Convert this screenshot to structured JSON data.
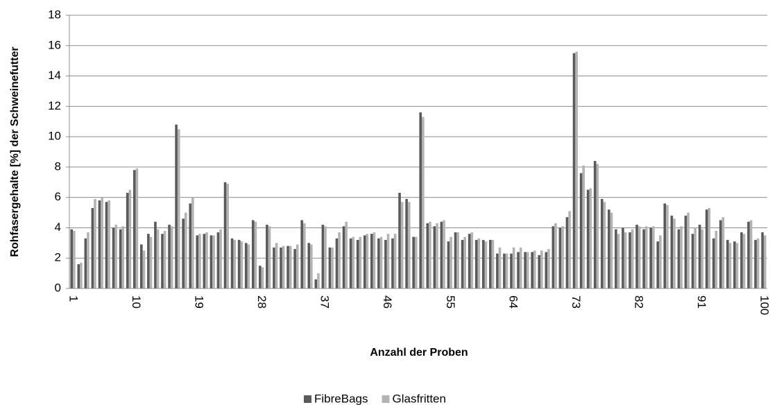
{
  "chart_data": {
    "type": "bar",
    "xlabel": "Anzahl der Proben",
    "ylabel": "Rohfasergehalte [%] der Schweinefutter",
    "categories": [
      1,
      null,
      null,
      null,
      null,
      null,
      null,
      null,
      null,
      10,
      null,
      null,
      null,
      null,
      null,
      null,
      null,
      null,
      19,
      null,
      null,
      null,
      null,
      null,
      null,
      null,
      null,
      28,
      null,
      null,
      null,
      null,
      null,
      null,
      null,
      null,
      37,
      null,
      null,
      null,
      null,
      null,
      null,
      null,
      null,
      46,
      null,
      null,
      null,
      null,
      null,
      null,
      null,
      null,
      55,
      null,
      null,
      null,
      null,
      null,
      null,
      null,
      null,
      64,
      null,
      null,
      null,
      null,
      null,
      null,
      null,
      null,
      73,
      null,
      null,
      null,
      null,
      null,
      null,
      null,
      null,
      82,
      null,
      null,
      null,
      null,
      null,
      null,
      null,
      null,
      91,
      null,
      null,
      null,
      null,
      null,
      null,
      null,
      null,
      100
    ],
    "series": [
      {
        "name": "FibreBags",
        "color": "#5a5a5a",
        "values": [
          3.9,
          1.6,
          3.3,
          5.3,
          5.8,
          5.7,
          4.0,
          3.9,
          6.3,
          7.8,
          2.9,
          3.6,
          4.4,
          3.6,
          4.2,
          10.8,
          4.6,
          5.6,
          3.5,
          3.6,
          3.5,
          3.7,
          7.0,
          3.3,
          3.2,
          3.0,
          4.5,
          1.5,
          4.2,
          2.7,
          2.7,
          2.8,
          2.6,
          4.5,
          3.0,
          0.6,
          4.2,
          2.7,
          3.3,
          4.1,
          3.3,
          3.2,
          3.5,
          3.6,
          3.3,
          3.2,
          3.3,
          6.3,
          5.9,
          3.4,
          11.6,
          4.3,
          4.1,
          4.4,
          3.1,
          3.7,
          3.2,
          3.6,
          3.2,
          3.2,
          3.2,
          2.3,
          2.3,
          2.3,
          2.4,
          2.4,
          2.4,
          2.2,
          2.4,
          4.1,
          4.0,
          4.7,
          15.5,
          7.6,
          6.5,
          8.4,
          5.9,
          5.2,
          3.9,
          4.0,
          3.7,
          4.2,
          3.9,
          4.0,
          3.1,
          5.6,
          4.8,
          3.9,
          4.8,
          3.6,
          4.2,
          5.2,
          3.3,
          4.5,
          3.2,
          3.1,
          3.7,
          4.4,
          3.2,
          3.7
        ]
      },
      {
        "name": "Glasfritten",
        "color": "#b3b3b3",
        "values": [
          3.8,
          1.7,
          3.7,
          5.9,
          6.0,
          5.8,
          4.2,
          4.1,
          6.5,
          7.9,
          2.5,
          3.4,
          3.9,
          3.8,
          4.1,
          10.5,
          5.0,
          6.0,
          3.6,
          3.7,
          3.5,
          3.9,
          6.9,
          3.2,
          3.1,
          2.9,
          4.4,
          1.4,
          4.1,
          3.0,
          2.8,
          2.8,
          2.9,
          4.3,
          2.9,
          1.0,
          4.1,
          2.7,
          3.7,
          4.4,
          3.4,
          3.4,
          3.6,
          3.7,
          3.4,
          3.6,
          3.6,
          5.7,
          5.7,
          3.4,
          11.3,
          4.4,
          4.3,
          4.5,
          3.4,
          3.7,
          3.4,
          3.7,
          3.3,
          3.1,
          3.2,
          2.7,
          2.3,
          2.7,
          2.7,
          2.4,
          2.5,
          2.5,
          2.6,
          4.3,
          4.1,
          5.1,
          15.6,
          8.1,
          6.6,
          8.2,
          5.7,
          5.0,
          3.6,
          3.7,
          3.9,
          4.1,
          4.1,
          4.1,
          3.5,
          5.5,
          4.6,
          4.1,
          5.0,
          4.0,
          3.9,
          5.3,
          3.8,
          4.7,
          3.0,
          3.0,
          3.6,
          4.5,
          3.3,
          3.5
        ]
      }
    ],
    "ylim": [
      0,
      18
    ],
    "yticks": [
      0,
      2,
      4,
      6,
      8,
      10,
      12,
      14,
      16,
      18
    ],
    "grid": true,
    "legend": "bottom"
  }
}
